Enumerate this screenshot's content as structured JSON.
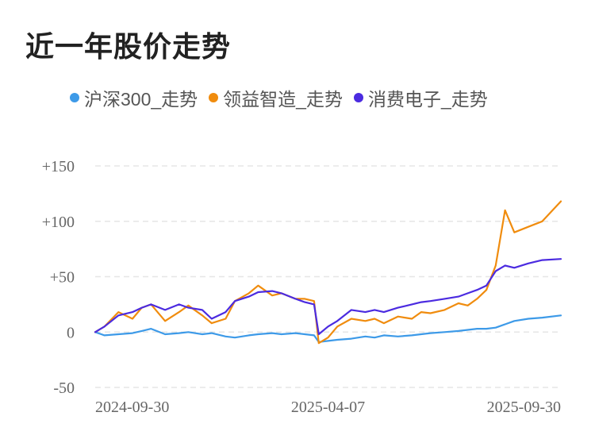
{
  "title": "近一年股价走势",
  "legend": [
    {
      "label": "沪深300_走势",
      "color": "#3d9ae8"
    },
    {
      "label": "领益智造_走势",
      "color": "#f08c0e"
    },
    {
      "label": "消费电子_走势",
      "color": "#4b2be0"
    }
  ],
  "chart_data": {
    "type": "line",
    "title": "近一年股价走势",
    "ylim": [
      -50,
      150
    ],
    "yticks": [
      150,
      100,
      50,
      0,
      -50
    ],
    "ytick_labels": [
      "+150",
      "+100",
      "+50",
      "0",
      "-50"
    ],
    "xtick_labels": [
      "2024-09-30",
      "2025-04-07",
      "2025-09-30"
    ],
    "xtick_positions": [
      0,
      0.5,
      1
    ],
    "grid": true,
    "legend_position": "top",
    "x": [
      0,
      0.02,
      0.05,
      0.08,
      0.1,
      0.12,
      0.15,
      0.18,
      0.2,
      0.23,
      0.25,
      0.28,
      0.3,
      0.33,
      0.35,
      0.38,
      0.4,
      0.43,
      0.45,
      0.47,
      0.48,
      0.5,
      0.52,
      0.55,
      0.58,
      0.6,
      0.62,
      0.65,
      0.68,
      0.7,
      0.72,
      0.75,
      0.78,
      0.8,
      0.82,
      0.84,
      0.86,
      0.88,
      0.9,
      0.93,
      0.96,
      1.0
    ],
    "series": [
      {
        "name": "沪深300_走势",
        "color": "#3d9ae8",
        "values": [
          0,
          -3,
          -2,
          -1,
          1,
          3,
          -2,
          -1,
          0,
          -2,
          -1,
          -4,
          -5,
          -3,
          -2,
          -1,
          -2,
          -1,
          -2,
          -3,
          -9,
          -8,
          -7,
          -6,
          -4,
          -5,
          -3,
          -4,
          -3,
          -2,
          -1,
          0,
          1,
          2,
          3,
          3,
          4,
          7,
          10,
          12,
          13,
          15
        ]
      },
      {
        "name": "领益智造_走势",
        "color": "#f08c0e",
        "values": [
          0,
          5,
          18,
          12,
          22,
          25,
          10,
          18,
          24,
          15,
          8,
          12,
          28,
          35,
          42,
          33,
          35,
          30,
          30,
          28,
          -10,
          -5,
          5,
          12,
          10,
          12,
          8,
          14,
          12,
          18,
          17,
          20,
          26,
          24,
          30,
          38,
          60,
          110,
          90,
          95,
          100,
          118
        ]
      },
      {
        "name": "消费电子_走势",
        "color": "#4b2be0",
        "values": [
          0,
          5,
          15,
          18,
          22,
          25,
          20,
          25,
          22,
          20,
          12,
          18,
          28,
          32,
          36,
          37,
          35,
          30,
          27,
          25,
          -2,
          5,
          10,
          20,
          18,
          20,
          18,
          22,
          25,
          27,
          28,
          30,
          32,
          35,
          38,
          42,
          55,
          60,
          58,
          62,
          65,
          66
        ]
      }
    ]
  }
}
